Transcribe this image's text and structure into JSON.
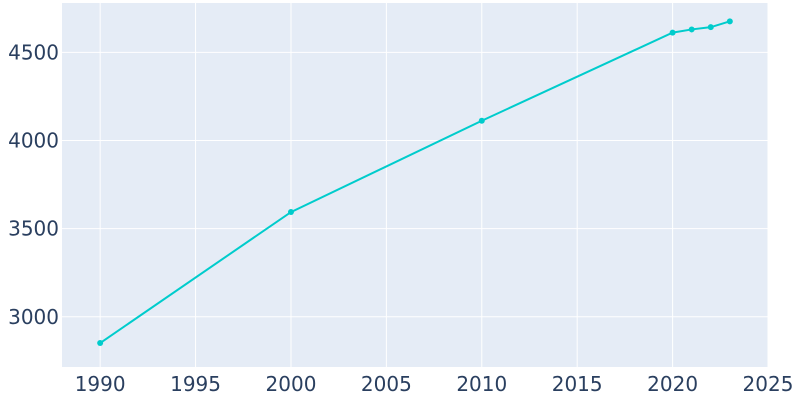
{
  "chart_data": {
    "type": "line",
    "title": "",
    "xlabel": "",
    "ylabel": "",
    "x": [
      1990,
      2000,
      2010,
      2020,
      2021,
      2022,
      2023
    ],
    "series": [
      {
        "values": [
          2851,
          3594,
          4112,
          4612,
          4630,
          4643,
          4676
        ]
      }
    ],
    "xlim": [
      1988,
      2025
    ],
    "ylim": [
      2715,
      4780
    ],
    "xticks": [
      1990,
      1995,
      2000,
      2005,
      2010,
      2015,
      2020,
      2025
    ],
    "yticks": [
      3000,
      3500,
      4000,
      4500
    ],
    "grid": true,
    "colors": {
      "line": "#00cccc",
      "plot_bg": "#e5ecf6",
      "grid": "#ffffff",
      "text": "#2a3f5f"
    }
  }
}
